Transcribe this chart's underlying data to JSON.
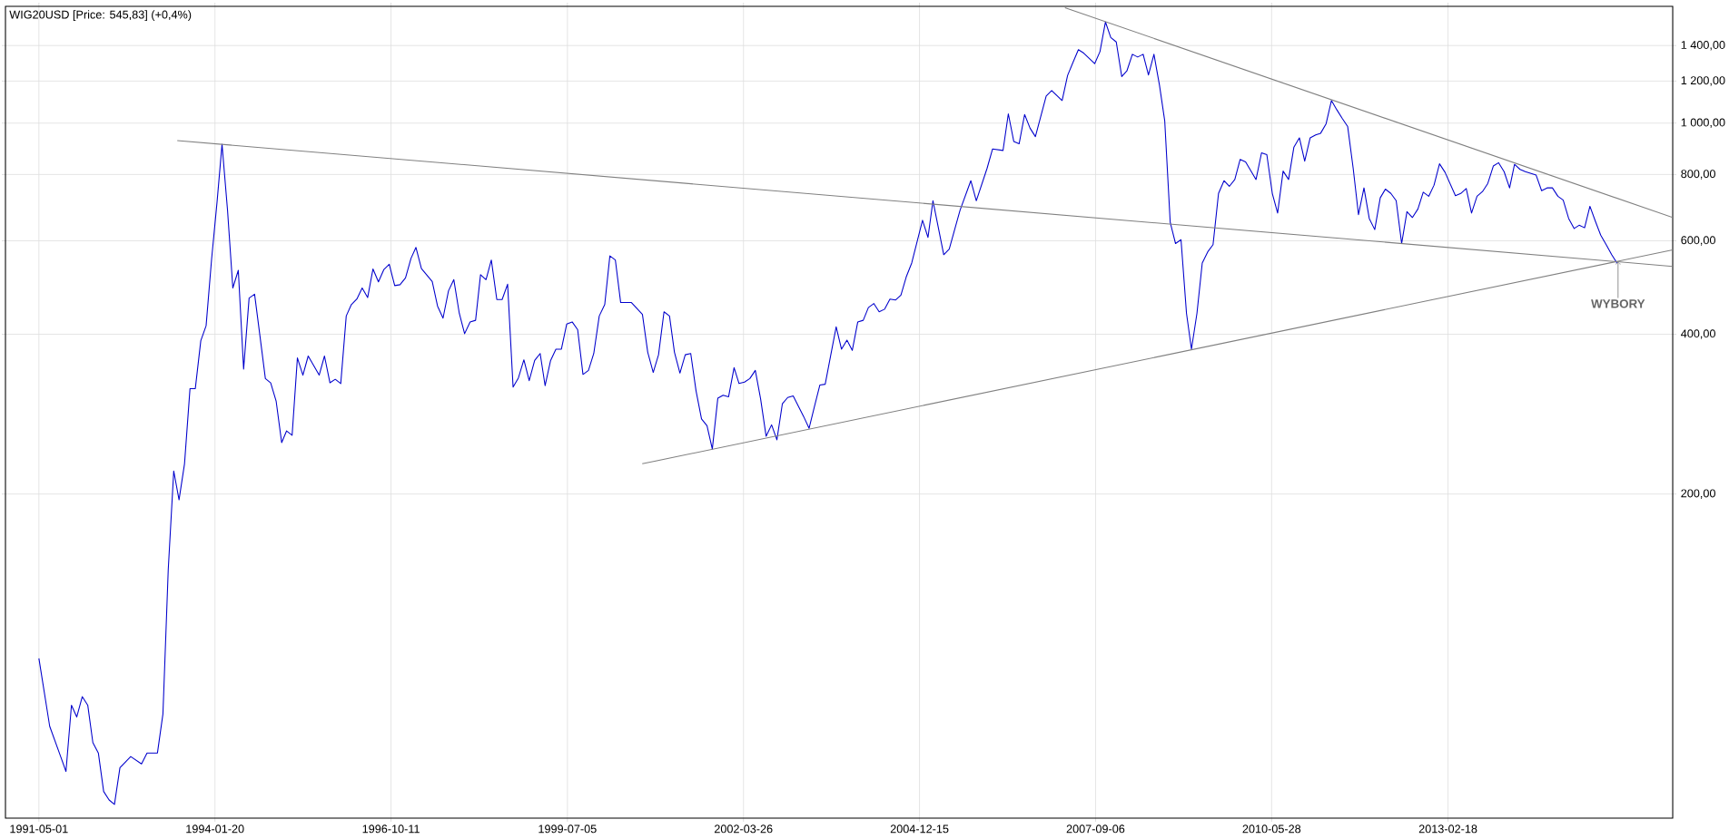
{
  "chart_data": {
    "type": "line",
    "title": "WIG20USD [Price: 545,83] (+0,4%)",
    "log": "y",
    "grid": true,
    "xlim": [
      "1990-10-24",
      "2016-08-11"
    ],
    "xticks": [
      "1991-05-01",
      "1994-01-20",
      "1996-10-11",
      "1999-07-05",
      "2002-03-26",
      "2004-12-15",
      "2007-09-06",
      "2010-05-28",
      "2013-02-18"
    ],
    "ylim": [
      49,
      1660
    ],
    "yticks": [
      {
        "value": 200,
        "label": "200,00"
      },
      {
        "value": 400,
        "label": "400,00"
      },
      {
        "value": 600,
        "label": "600,00"
      },
      {
        "value": 800,
        "label": "800,00"
      },
      {
        "value": 1000,
        "label": "1 000,00"
      },
      {
        "value": 1200,
        "label": "1 200,00"
      },
      {
        "value": 1400,
        "label": "1 400,00"
      }
    ],
    "annotations": [
      {
        "text": "WYBORY",
        "x": "2015-10-07",
        "y": 548
      }
    ],
    "series": [
      {
        "color": "#0000cc",
        "x": [
          "1991-05",
          "1991-07",
          "1991-09",
          "1991-10",
          "1991-11",
          "1991-12",
          "1992-01",
          "1992-02",
          "1992-03",
          "1992-04",
          "1992-05",
          "1992-06",
          "1992-07",
          "1992-08",
          "1992-10",
          "1992-12",
          "1993-01",
          "1993-03",
          "1993-04",
          "1993-05",
          "1993-06",
          "1993-07",
          "1993-08",
          "1993-09",
          "1993-10",
          "1993-11",
          "1993-12",
          "1994-01",
          "1994-02",
          "1994-03",
          "1994-04",
          "1994-05",
          "1994-06",
          "1994-07",
          "1994-08",
          "1994-09",
          "1994-10",
          "1994-11",
          "1994-12",
          "1995-01",
          "1995-02",
          "1995-03",
          "1995-04",
          "1995-05",
          "1995-06",
          "1995-07",
          "1995-09",
          "1995-10",
          "1995-11",
          "1995-12",
          "1996-01",
          "1996-02",
          "1996-03",
          "1996-04",
          "1996-05",
          "1996-06",
          "1996-07",
          "1996-08",
          "1996-09",
          "1996-10",
          "1996-11",
          "1996-12",
          "1997-01",
          "1997-02",
          "1997-03",
          "1997-04",
          "1997-06",
          "1997-07",
          "1997-08",
          "1997-09",
          "1997-10",
          "1997-11",
          "1997-12",
          "1998-01",
          "1998-02",
          "1998-03",
          "1998-04",
          "1998-05",
          "1998-06",
          "1998-07",
          "1998-08",
          "1998-09",
          "1998-10",
          "1998-11",
          "1998-12",
          "1999-01",
          "1999-02",
          "1999-03",
          "1999-04",
          "1999-05",
          "1999-06",
          "1999-07",
          "1999-08",
          "1999-09",
          "1999-10",
          "1999-11",
          "1999-12",
          "2000-01",
          "2000-02",
          "2000-03",
          "2000-04",
          "2000-05",
          "2000-07",
          "2000-09",
          "2000-10",
          "2000-11",
          "2000-12",
          "2001-01",
          "2001-02",
          "2001-03",
          "2001-04",
          "2001-05",
          "2001-06",
          "2001-07",
          "2001-08",
          "2001-09",
          "2001-10",
          "2001-11",
          "2001-12",
          "2002-01",
          "2002-02",
          "2002-03",
          "2002-04",
          "2002-05",
          "2002-06",
          "2002-07",
          "2002-08",
          "2002-09",
          "2002-10",
          "2002-11",
          "2002-12",
          "2003-01",
          "2003-03",
          "2003-04",
          "2003-05",
          "2003-06",
          "2003-07",
          "2003-08",
          "2003-09",
          "2003-10",
          "2003-11",
          "2003-12",
          "2004-01",
          "2004-02",
          "2004-03",
          "2004-04",
          "2004-05",
          "2004-06",
          "2004-07",
          "2004-08",
          "2004-09",
          "2004-10",
          "2004-11",
          "2005-01",
          "2005-02",
          "2005-03",
          "2005-05",
          "2005-06",
          "2005-08",
          "2005-10",
          "2005-11",
          "2006-01",
          "2006-02",
          "2006-04",
          "2006-05",
          "2006-06",
          "2006-07",
          "2006-08",
          "2006-09",
          "2006-10",
          "2006-12",
          "2007-01",
          "2007-03",
          "2007-04",
          "2007-05",
          "2007-06",
          "2007-07",
          "2007-09",
          "2007-10",
          "2007-11",
          "2007-12",
          "2008-01",
          "2008-02",
          "2008-03",
          "2008-04",
          "2008-05",
          "2008-06",
          "2008-07",
          "2008-08",
          "2008-09",
          "2008-10",
          "2008-11",
          "2008-12",
          "2009-01",
          "2009-02",
          "2009-03",
          "2009-04",
          "2009-05",
          "2009-06",
          "2009-07",
          "2009-08",
          "2009-09",
          "2009-10",
          "2009-11",
          "2009-12",
          "2010-01",
          "2010-03",
          "2010-04",
          "2010-05",
          "2010-06",
          "2010-07",
          "2010-08",
          "2010-09",
          "2010-10",
          "2010-11",
          "2010-12",
          "2011-01",
          "2011-02",
          "2011-03",
          "2011-04",
          "2011-05",
          "2011-06",
          "2011-07",
          "2011-08",
          "2011-09",
          "2011-10",
          "2011-11",
          "2011-12",
          "2012-01",
          "2012-02",
          "2012-03",
          "2012-04",
          "2012-05",
          "2012-06",
          "2012-07",
          "2012-08",
          "2012-09",
          "2012-10",
          "2012-11",
          "2012-12",
          "2013-01",
          "2013-02",
          "2013-04",
          "2013-05",
          "2013-06",
          "2013-07",
          "2013-08",
          "2013-09",
          "2013-10",
          "2013-11",
          "2013-12",
          "2014-01",
          "2014-02",
          "2014-03",
          "2014-04",
          "2014-05",
          "2014-07",
          "2014-08",
          "2014-09",
          "2014-10",
          "2014-11",
          "2014-12",
          "2015-01",
          "2015-02",
          "2015-03",
          "2015-04",
          "2015-05",
          "2015-06",
          "2015-07",
          "2015-08",
          "2015-09",
          "2015-10"
        ],
        "values": [
          98,
          73,
          64,
          60,
          80,
          76,
          83,
          80,
          68,
          65,
          55,
          53,
          52,
          61,
          64,
          62,
          65,
          65,
          77,
          144,
          221,
          195,
          228,
          316,
          316,
          389,
          415,
          554,
          711,
          912,
          686,
          489,
          528,
          344,
          468,
          476,
          398,
          330,
          324,
          299,
          250,
          263,
          258,
          361,
          335,
          364,
          335,
          364,
          324,
          329,
          323,
          433,
          455,
          466,
          489,
          469,
          531,
          502,
          530,
          542,
          494,
          496,
          511,
          556,
          583,
          532,
          503,
          452,
          429,
          483,
          507,
          438,
          401,
          422,
          425,
          518,
          507,
          552,
          465,
          465,
          497,
          318,
          331,
          358,
          327,
          357,
          368,
          320,
          357,
          375,
          375,
          418,
          422,
          408,
          336,
          342,
          368,
          433,
          455,
          562,
          552,
          459,
          459,
          436,
          370,
          339,
          366,
          441,
          433,
          370,
          338,
          366,
          368,
          313,
          277,
          269,
          243,
          303,
          307,
          305,
          346,
          323,
          325,
          330,
          342,
          302,
          257,
          270,
          253,
          296,
          304,
          306,
          280,
          266,
          292,
          321,
          322,
          365,
          413,
          375,
          390,
          373,
          422,
          425,
          449,
          457,
          441,
          446,
          466,
          464,
          474,
          513,
          545,
          656,
          609,
          714,
          565,
          579,
          685,
          779,
          714,
          822,
          894,
          888,
          1041,
          923,
          914,
          1038,
          978,
          943,
          1125,
          1152,
          1103,
          1230,
          1300,
          1375,
          1355,
          1294,
          1364,
          1551,
          1450,
          1422,
          1224,
          1254,
          1348,
          1332,
          1348,
          1232,
          1348,
          1180,
          1009,
          650,
          593,
          603,
          438,
          375,
          438,
          545,
          572,
          590,
          737,
          779,
          760,
          783,
          854,
          845,
          783,
          879,
          872,
          737,
          677,
          812,
          783,
          901,
          938,
          848,
          938,
          950,
          957,
          997,
          1103,
          1059,
          1021,
          985,
          822,
          672,
          755,
          661,
          630,
          723,
          751,
          737,
          714,
          593,
          681,
          664,
          689,
          741,
          728,
          764,
          838,
          808,
          730,
          737,
          753,
          677,
          728,
          743,
          770,
          830,
          842,
          810,
          755,
          836,
          818,
          810,
          798,
          746,
          755,
          755,
          728,
          716,
          661,
          633,
          642,
          635,
          697,
          653,
          615,
          590,
          565,
          545
        ]
      },
      {
        "color": "#808080",
        "x": [
          "1993-06-21",
          "2016-08-11"
        ],
        "values": [
          927,
          537
        ]
      },
      {
        "color": "#808080",
        "x": [
          "2007-03-17",
          "2016-08-11"
        ],
        "values": [
          1650,
          664
        ]
      },
      {
        "color": "#808080",
        "x": [
          "2000-08-31",
          "2016-08-11"
        ],
        "values": [
          228,
          577
        ]
      }
    ]
  }
}
